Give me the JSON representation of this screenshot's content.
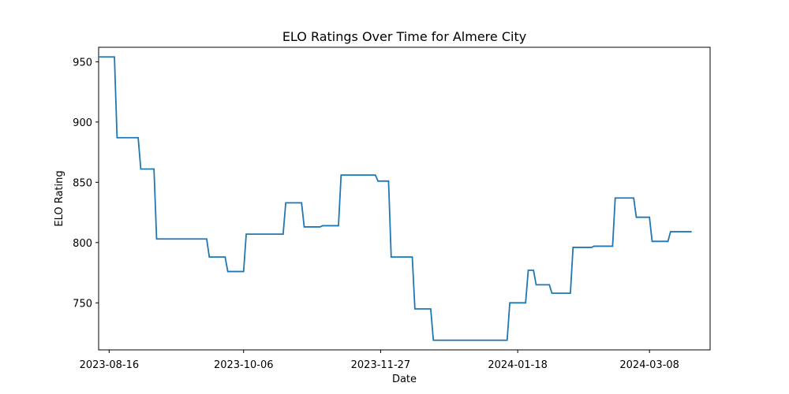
{
  "chart_data": {
    "type": "line",
    "title": "ELO Ratings Over Time for Almere City",
    "xlabel": "Date",
    "ylabel": "ELO Rating",
    "x_ticks": [
      "2023-08-16",
      "2023-10-06",
      "2023-11-27",
      "2024-01-18",
      "2024-03-08"
    ],
    "y_ticks": [
      750,
      800,
      850,
      900,
      950
    ],
    "xlim": [
      "2023-08-12",
      "2024-03-31"
    ],
    "ylim": [
      711,
      962
    ],
    "grid": false,
    "line_color": "#1f77b4",
    "series": [
      {
        "x": [
          "2023-08-12",
          "2023-08-18",
          "2023-08-19",
          "2023-08-27",
          "2023-08-28",
          "2023-09-02",
          "2023-09-03",
          "2023-09-16",
          "2023-09-17",
          "2023-09-22",
          "2023-09-23",
          "2023-09-29",
          "2023-09-30",
          "2023-10-06",
          "2023-10-07",
          "2023-10-21",
          "2023-10-22",
          "2023-10-28",
          "2023-10-29",
          "2023-11-04",
          "2023-11-05",
          "2023-11-11",
          "2023-11-12",
          "2023-11-25",
          "2023-11-26",
          "2023-11-30",
          "2023-12-01",
          "2023-12-09",
          "2023-12-10",
          "2023-12-16",
          "2023-12-17",
          "2024-01-14",
          "2024-01-15",
          "2024-01-21",
          "2024-01-22",
          "2024-01-24",
          "2024-01-25",
          "2024-01-30",
          "2024-01-31",
          "2024-02-07",
          "2024-02-08",
          "2024-02-15",
          "2024-02-16",
          "2024-02-23",
          "2024-02-24",
          "2024-03-02",
          "2024-03-03",
          "2024-03-08",
          "2024-03-09",
          "2024-03-15",
          "2024-03-16",
          "2024-03-24"
        ],
        "y": [
          954,
          954,
          887,
          887,
          861,
          861,
          803,
          803,
          803,
          803,
          788,
          788,
          776,
          776,
          807,
          807,
          833,
          833,
          813,
          813,
          814,
          814,
          856,
          856,
          851,
          851,
          788,
          788,
          745,
          745,
          719,
          719,
          750,
          750,
          777,
          777,
          765,
          765,
          758,
          758,
          796,
          796,
          797,
          797,
          837,
          837,
          821,
          821,
          801,
          801,
          809,
          809
        ]
      }
    ]
  }
}
